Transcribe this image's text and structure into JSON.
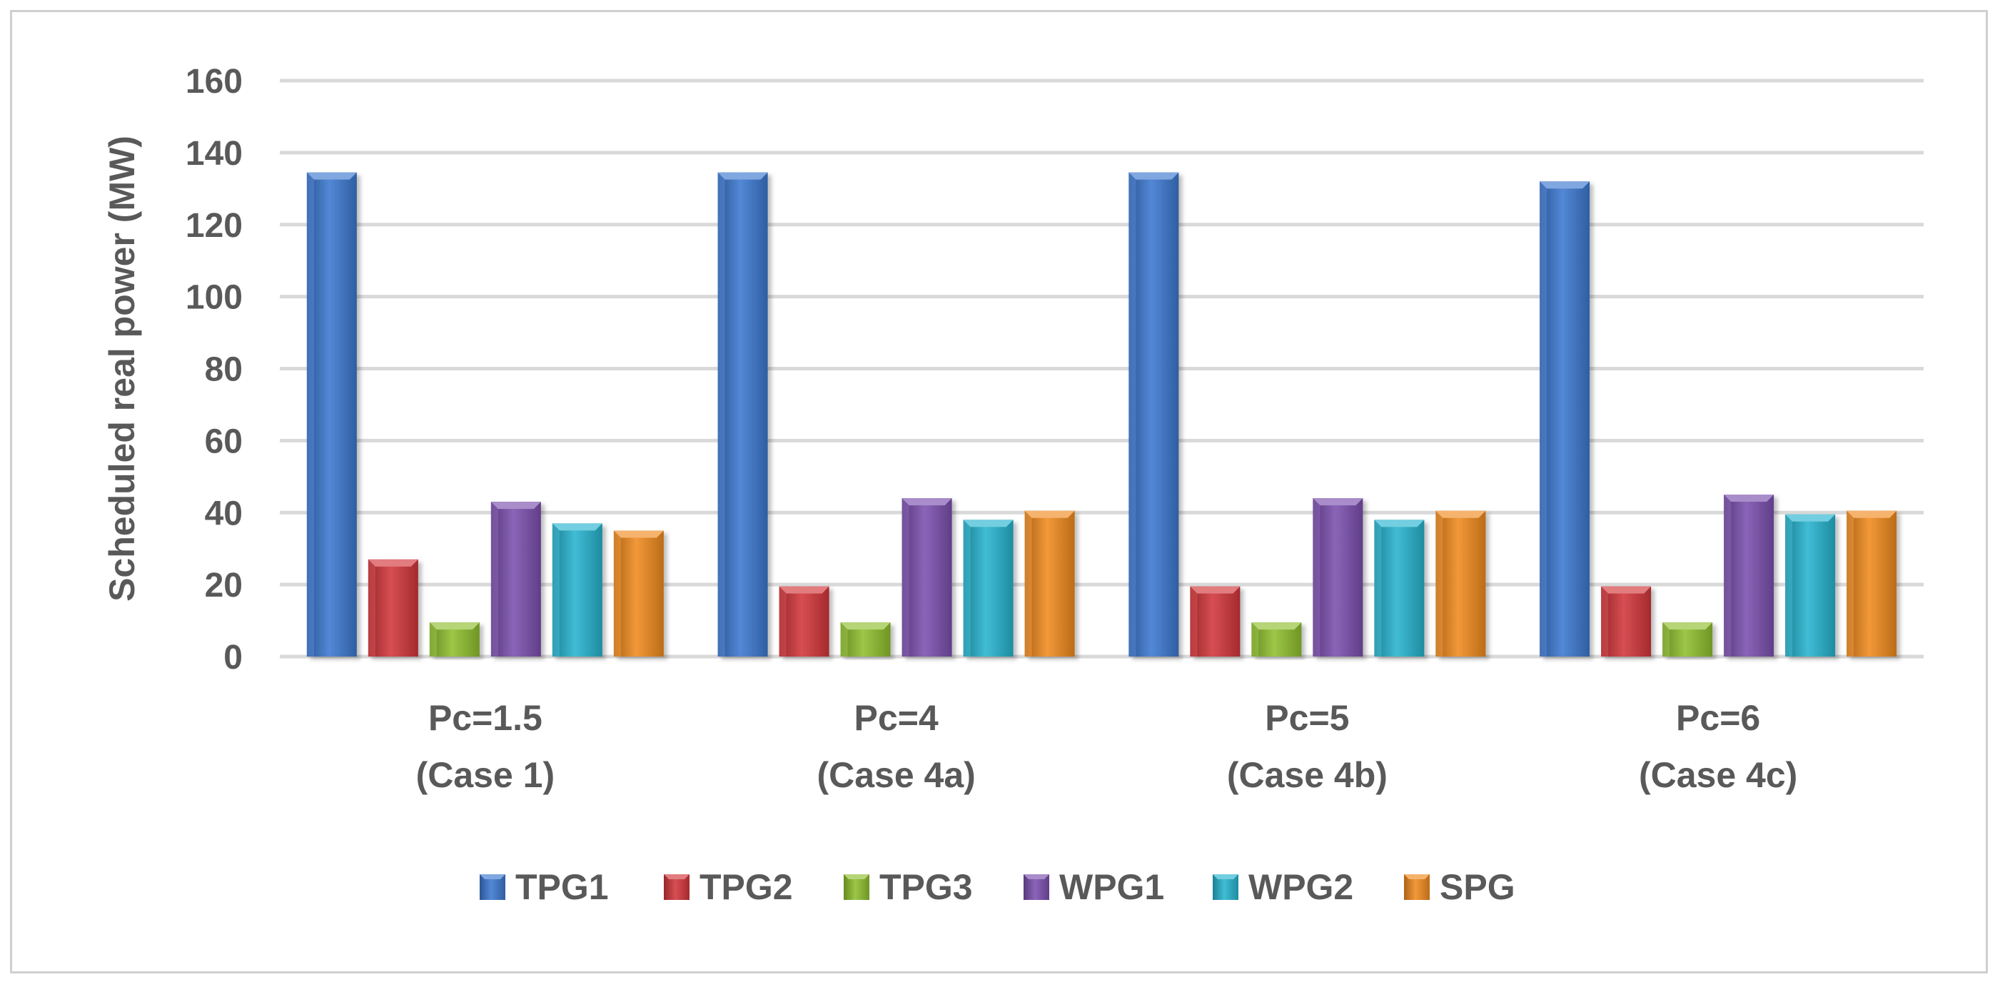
{
  "chart_data": {
    "type": "bar",
    "title": "",
    "xlabel": "",
    "ylabel": "Scheduled real power (MW)",
    "ylim": [
      0,
      160
    ],
    "yticks": [
      0,
      20,
      40,
      60,
      80,
      100,
      120,
      140,
      160
    ],
    "grid": true,
    "legend_position": "bottom",
    "categories": [
      [
        "Pc=1.5",
        "(Case 1)"
      ],
      [
        "Pc=4",
        "(Case 4a)"
      ],
      [
        "Pc=5",
        "(Case 4b)"
      ],
      [
        "Pc=6",
        "(Case 4c)"
      ]
    ],
    "series": [
      {
        "name": "TPG1",
        "color": "#3c78d0",
        "values": [
          134.5,
          134.5,
          134.5,
          132
        ]
      },
      {
        "name": "TPG2",
        "color": "#d2363a",
        "values": [
          27,
          19.5,
          19.5,
          19.5
        ]
      },
      {
        "name": "TPG3",
        "color": "#8fbf2e",
        "values": [
          9.5,
          9.5,
          9.5,
          9.5
        ]
      },
      {
        "name": "WPG1",
        "color": "#7b4fae",
        "values": [
          43,
          44,
          44,
          45
        ]
      },
      {
        "name": "WPG2",
        "color": "#26b3cf",
        "values": [
          37,
          38,
          38,
          39.5
        ]
      },
      {
        "name": "SPG",
        "color": "#f08a1e",
        "values": [
          35,
          40.5,
          40.5,
          40.5
        ]
      }
    ]
  }
}
